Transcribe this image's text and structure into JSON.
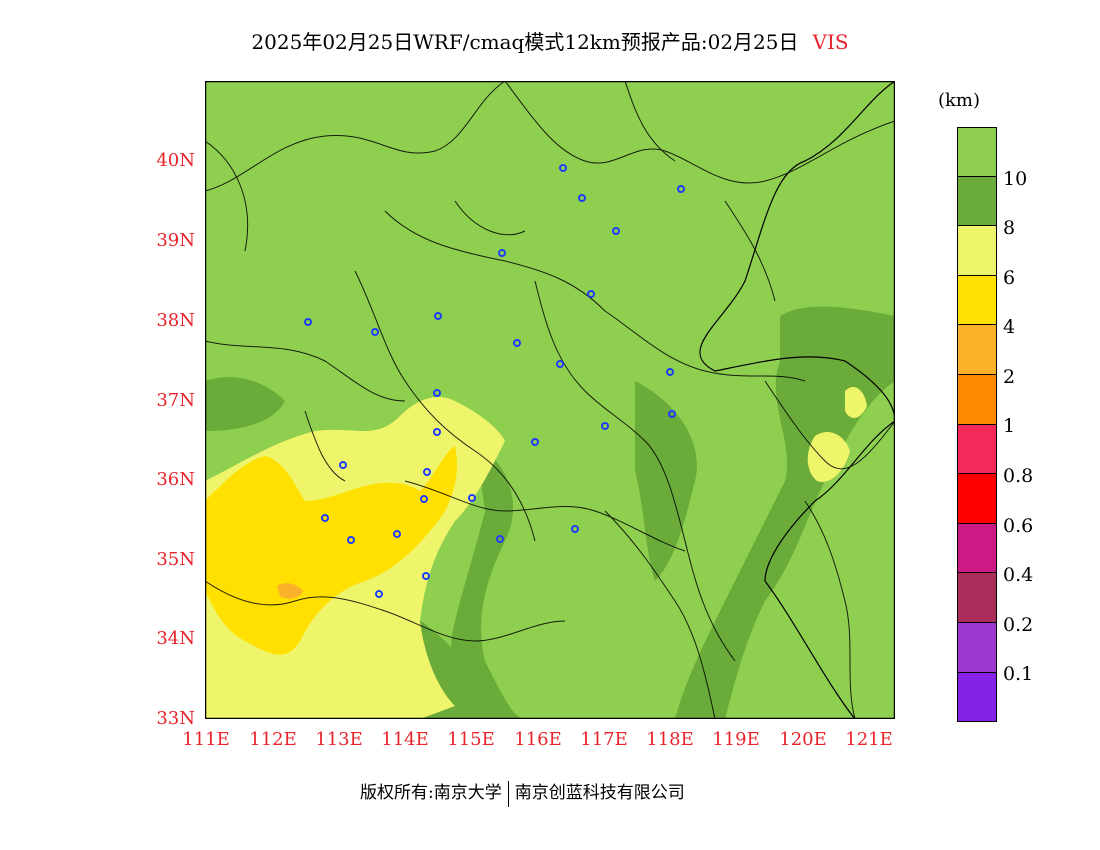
{
  "title": {
    "main": "2025年02月25日WRF/cmaq模式12km预报产品:02月25日",
    "variable": "VIS"
  },
  "map": {
    "lat_range": [
      33,
      41
    ],
    "lon_range": [
      111,
      121.4
    ],
    "y_ticks": [
      "33N",
      "34N",
      "35N",
      "36N",
      "37N",
      "38N",
      "39N",
      "40N"
    ],
    "x_ticks": [
      "111E",
      "112E",
      "113E",
      "114E",
      "115E",
      "116E",
      "117E",
      "118E",
      "119E",
      "120E",
      "121E"
    ],
    "fill_background": "#8ecf50",
    "regions": [
      {
        "level": "8-10",
        "color": "#6aab3a"
      },
      {
        "level": "6-8",
        "color": "#eff56a"
      },
      {
        "level": "4-6",
        "color": "#ffe000"
      },
      {
        "level": "2-4",
        "color": "#fbb22b"
      }
    ],
    "city_marker_color": "#1f3cff"
  },
  "colorbar": {
    "unit": "(km)",
    "labels": [
      "10",
      "8",
      "6",
      "4",
      "2",
      "1",
      "0.8",
      "0.6",
      "0.4",
      "0.2",
      "0.1"
    ],
    "colors": [
      "#8ecf50",
      "#6aab3a",
      "#eff56a",
      "#ffe000",
      "#fbb22b",
      "#fd8a00",
      "#f5285a",
      "#ff0000",
      "#cc1a84",
      "#ab2d5c",
      "#9a38cf",
      "#8622e6"
    ]
  },
  "footer": {
    "left": "版权所有:南京大学",
    "right": "南京创蓝科技有限公司"
  }
}
